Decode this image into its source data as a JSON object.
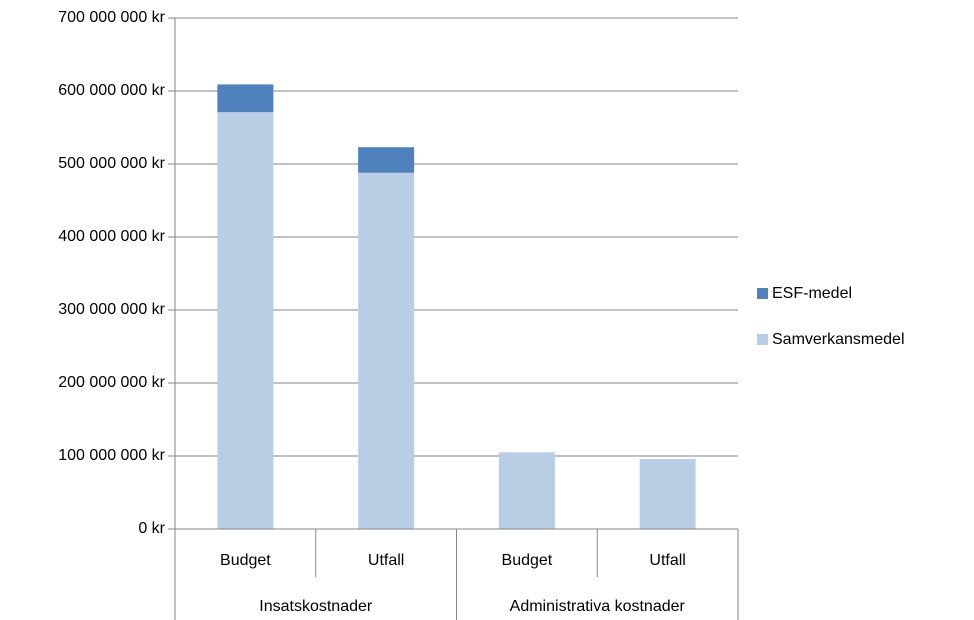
{
  "chart_data": {
    "type": "stacked_bar",
    "groups": [
      {
        "name": "Insatskostnader",
        "categories": [
          "Budget",
          "Utfall"
        ]
      },
      {
        "name": "Administrativa kostnader",
        "categories": [
          "Budget",
          "Utfall"
        ]
      }
    ],
    "series": [
      {
        "name": "Samverkansmedel",
        "color": "#b9cde5",
        "values": [
          571000000,
          488000000,
          105000000,
          96000000
        ]
      },
      {
        "name": "ESF-medel",
        "color": "#4f81bd",
        "values": [
          38000000,
          35000000,
          0,
          0
        ]
      }
    ],
    "ylim": [
      0,
      700000000
    ],
    "yticks": [
      {
        "value": 0,
        "label": "0 kr"
      },
      {
        "value": 100000000,
        "label": "100 000 000 kr"
      },
      {
        "value": 200000000,
        "label": "200 000 000 kr"
      },
      {
        "value": 300000000,
        "label": "300 000 000 kr"
      },
      {
        "value": 400000000,
        "label": "400 000 000 kr"
      },
      {
        "value": 500000000,
        "label": "500 000 000 kr"
      },
      {
        "value": 600000000,
        "label": "600 000 000 kr"
      },
      {
        "value": 700000000,
        "label": "700 000 000 kr"
      }
    ],
    "grid": true,
    "legend": "right"
  }
}
